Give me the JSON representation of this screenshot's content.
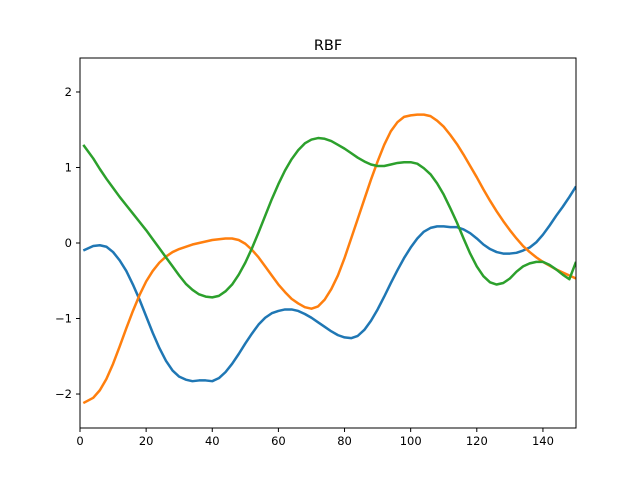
{
  "chart_data": {
    "type": "line",
    "title": "RBF",
    "xlabel": "",
    "ylabel": "",
    "xlim": [
      0,
      150
    ],
    "ylim": [
      -2.45,
      2.45
    ],
    "xticks": [
      0,
      20,
      40,
      60,
      80,
      100,
      120,
      140
    ],
    "yticks": [
      -2,
      -1,
      0,
      1,
      2
    ],
    "xtick_labels": [
      "0",
      "20",
      "40",
      "60",
      "80",
      "100",
      "120",
      "140"
    ],
    "ytick_labels": [
      "−2",
      "−1",
      "0",
      "1",
      "2"
    ],
    "grid": false,
    "series": [
      {
        "color": "#1f77b4",
        "x": [
          1,
          4,
          6,
          8,
          10,
          12,
          14,
          16,
          18,
          20,
          22,
          24,
          26,
          28,
          30,
          32,
          34,
          36,
          38,
          40,
          42,
          44,
          46,
          48,
          50,
          52,
          54,
          56,
          58,
          60,
          62,
          64,
          66,
          68,
          70,
          72,
          74,
          76,
          78,
          80,
          82,
          84,
          86,
          88,
          90,
          92,
          94,
          96,
          98,
          100,
          102,
          104,
          106,
          108,
          110,
          112,
          114,
          116,
          118,
          120,
          122,
          124,
          126,
          128,
          130,
          132,
          134,
          136,
          138,
          140,
          142,
          144,
          146,
          148,
          150
        ],
        "y": [
          -0.1,
          -0.04,
          -0.03,
          -0.05,
          -0.12,
          -0.23,
          -0.37,
          -0.55,
          -0.75,
          -0.97,
          -1.19,
          -1.39,
          -1.56,
          -1.69,
          -1.77,
          -1.81,
          -1.83,
          -1.82,
          -1.82,
          -1.83,
          -1.79,
          -1.71,
          -1.6,
          -1.47,
          -1.33,
          -1.2,
          -1.08,
          -0.99,
          -0.93,
          -0.9,
          -0.88,
          -0.88,
          -0.9,
          -0.94,
          -0.99,
          -1.05,
          -1.11,
          -1.17,
          -1.22,
          -1.25,
          -1.26,
          -1.23,
          -1.15,
          -1.03,
          -0.88,
          -0.71,
          -0.53,
          -0.36,
          -0.2,
          -0.06,
          0.06,
          0.15,
          0.2,
          0.22,
          0.22,
          0.21,
          0.21,
          0.18,
          0.13,
          0.06,
          -0.02,
          -0.08,
          -0.12,
          -0.14,
          -0.14,
          -0.13,
          -0.1,
          -0.06,
          0.01,
          0.11,
          0.23,
          0.36,
          0.48,
          0.61,
          0.75
        ]
      },
      {
        "color": "#ff7f0e",
        "x": [
          1,
          4,
          6,
          8,
          10,
          12,
          14,
          16,
          18,
          20,
          22,
          24,
          26,
          28,
          30,
          32,
          34,
          36,
          38,
          40,
          42,
          44,
          46,
          48,
          50,
          52,
          54,
          56,
          58,
          60,
          62,
          64,
          66,
          68,
          70,
          72,
          74,
          76,
          78,
          80,
          82,
          84,
          86,
          88,
          90,
          92,
          94,
          96,
          98,
          100,
          102,
          104,
          106,
          108,
          110,
          112,
          114,
          116,
          118,
          120,
          122,
          124,
          126,
          128,
          130,
          132,
          134,
          136,
          138,
          140,
          142,
          144,
          146,
          148,
          150
        ],
        "y": [
          -2.12,
          -2.05,
          -1.95,
          -1.8,
          -1.6,
          -1.37,
          -1.13,
          -0.9,
          -0.69,
          -0.51,
          -0.37,
          -0.26,
          -0.18,
          -0.12,
          -0.08,
          -0.05,
          -0.02,
          0.0,
          0.02,
          0.04,
          0.05,
          0.06,
          0.06,
          0.04,
          -0.01,
          -0.09,
          -0.19,
          -0.31,
          -0.43,
          -0.55,
          -0.65,
          -0.74,
          -0.8,
          -0.85,
          -0.87,
          -0.84,
          -0.75,
          -0.61,
          -0.43,
          -0.2,
          0.06,
          0.32,
          0.58,
          0.84,
          1.08,
          1.3,
          1.48,
          1.6,
          1.67,
          1.69,
          1.7,
          1.7,
          1.68,
          1.62,
          1.54,
          1.43,
          1.31,
          1.17,
          1.02,
          0.87,
          0.71,
          0.56,
          0.42,
          0.29,
          0.17,
          0.06,
          -0.04,
          -0.12,
          -0.19,
          -0.25,
          -0.3,
          -0.35,
          -0.39,
          -0.43,
          -0.47
        ]
      },
      {
        "color": "#2ca02c",
        "x": [
          1,
          4,
          6,
          8,
          10,
          12,
          14,
          16,
          18,
          20,
          22,
          24,
          26,
          28,
          30,
          32,
          34,
          36,
          38,
          40,
          42,
          44,
          46,
          48,
          50,
          52,
          54,
          56,
          58,
          60,
          62,
          64,
          66,
          68,
          70,
          72,
          74,
          76,
          78,
          80,
          82,
          84,
          86,
          88,
          90,
          92,
          94,
          96,
          98,
          100,
          102,
          104,
          106,
          108,
          110,
          112,
          114,
          116,
          118,
          120,
          122,
          124,
          126,
          128,
          130,
          132,
          134,
          136,
          138,
          140,
          142,
          144,
          146,
          148,
          150
        ],
        "y": [
          1.3,
          1.12,
          0.98,
          0.85,
          0.73,
          0.61,
          0.5,
          0.39,
          0.28,
          0.17,
          0.05,
          -0.07,
          -0.19,
          -0.31,
          -0.43,
          -0.54,
          -0.62,
          -0.68,
          -0.71,
          -0.72,
          -0.7,
          -0.64,
          -0.55,
          -0.42,
          -0.26,
          -0.07,
          0.14,
          0.36,
          0.58,
          0.78,
          0.96,
          1.11,
          1.23,
          1.32,
          1.37,
          1.39,
          1.38,
          1.35,
          1.3,
          1.25,
          1.19,
          1.13,
          1.08,
          1.04,
          1.02,
          1.02,
          1.04,
          1.06,
          1.07,
          1.07,
          1.05,
          0.99,
          0.91,
          0.79,
          0.64,
          0.46,
          0.27,
          0.06,
          -0.14,
          -0.31,
          -0.44,
          -0.52,
          -0.55,
          -0.53,
          -0.47,
          -0.38,
          -0.31,
          -0.27,
          -0.25,
          -0.25,
          -0.29,
          -0.35,
          -0.42,
          -0.48,
          -0.25
        ]
      }
    ]
  }
}
